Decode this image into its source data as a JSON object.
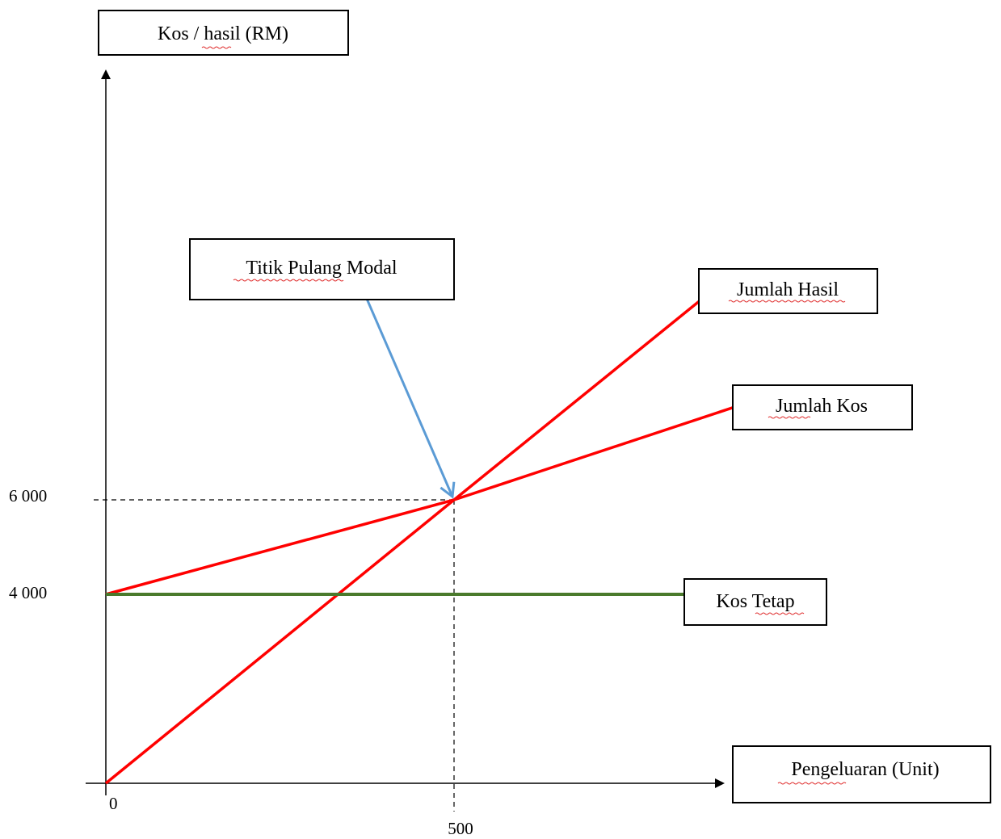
{
  "chart_data": {
    "type": "line",
    "ylabel": "Kos / hasil (RM)",
    "xlabel": "Pengeluaran (Unit)",
    "x_ticks": [
      "0",
      "500"
    ],
    "y_ticks": [
      "6 000",
      "4 000"
    ],
    "xlim": [
      0,
      900
    ],
    "ylim": [
      0,
      9000
    ],
    "grid": false,
    "series": [
      {
        "name": "Jumlah Hasil",
        "color": "#ff0000",
        "x": [
          0,
          500,
          860
        ],
        "y": [
          0,
          6000,
          10300
        ]
      },
      {
        "name": "Jumlah Kos",
        "color": "#ff0000",
        "x": [
          0,
          500,
          910
        ],
        "y": [
          4000,
          6000,
          8000
        ]
      },
      {
        "name": "Kos Tetap",
        "color": "#4a7a2c",
        "x": [
          0,
          840
        ],
        "y": [
          4000,
          4000
        ]
      }
    ],
    "reference_lines": {
      "x": 500,
      "y": 6000,
      "style": "dashed"
    },
    "annotation": {
      "text": "Titik Pulang Modal",
      "point": {
        "x": 500,
        "y": 6000
      },
      "arrow_color": "#5b9bd5"
    }
  }
}
